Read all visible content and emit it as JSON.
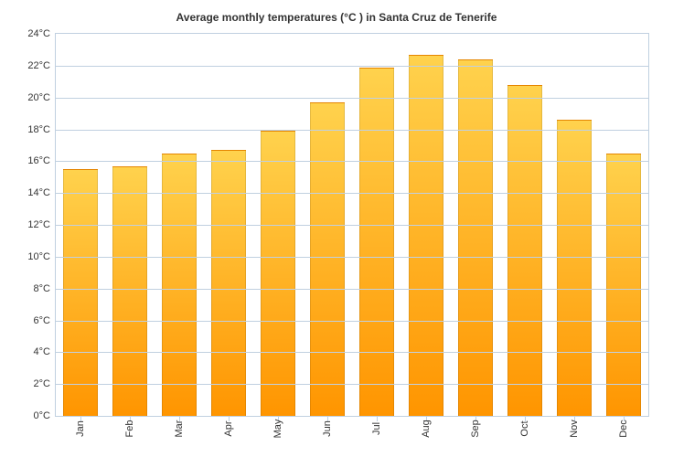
{
  "chart": {
    "type": "bar",
    "title": "Average monthly temperatures (°C ) in Santa Cruz de Tenerife",
    "title_fontsize": 12,
    "title_color": "#333333",
    "background_color": "#ffffff",
    "border_color": "#c0d0e0",
    "grid_color": "#c0d0e0",
    "label_fontsize": 11,
    "label_color": "#333333",
    "categories": [
      "Jan",
      "Feb",
      "Mar",
      "Apr",
      "May",
      "Jun",
      "Jul",
      "Aug",
      "Sep",
      "Oct",
      "Nov",
      "Dec"
    ],
    "values": [
      15.5,
      15.7,
      16.5,
      16.7,
      17.9,
      19.7,
      21.9,
      22.7,
      22.4,
      20.8,
      18.6,
      16.5
    ],
    "bar_fill_top": "#ffd24d",
    "bar_fill_bottom": "#ff9500",
    "bar_border": "rgba(0,0,0,0.1)",
    "bar_width": 0.7,
    "ylim": [
      0,
      24
    ],
    "ytick_step": 2,
    "y_unit": "°C",
    "x_label_rotation": -90
  }
}
